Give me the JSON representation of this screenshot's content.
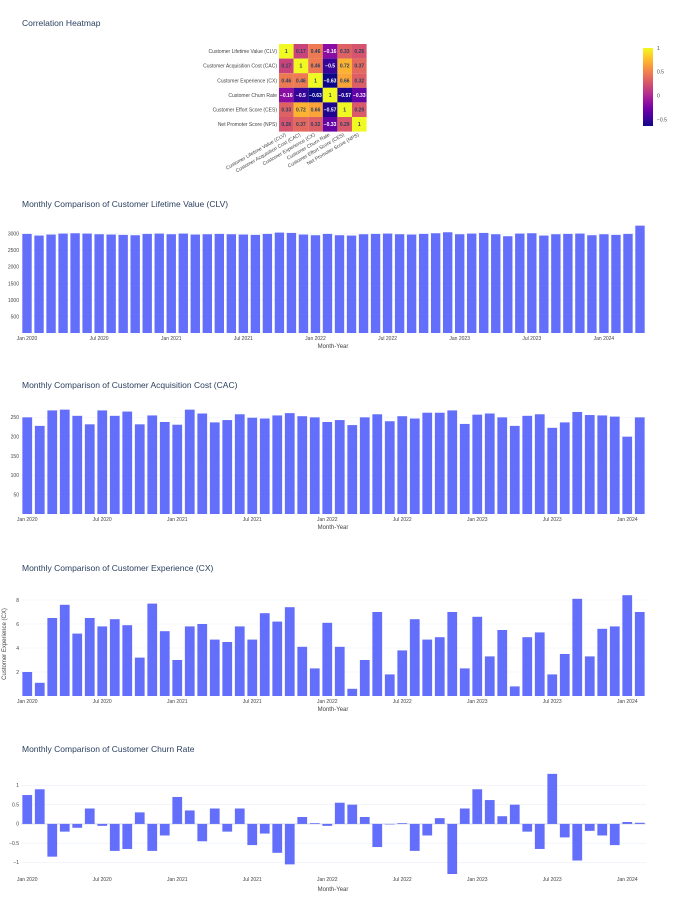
{
  "chart_data": [
    {
      "type": "heatmap",
      "title": "Correlation Heatmap",
      "labels": [
        "Customer Lifetime Value (CLV)",
        "Customer Acquisition Cost (CAC)",
        "Customer Experience (CX)",
        "Customer Churn Rate",
        "Customer Effort Score (CES)",
        "Net Promoter Score (NPS)"
      ],
      "values": [
        [
          1,
          0.17,
          0.46,
          -0.16,
          0.33,
          0.26
        ],
        [
          0.17,
          1,
          0.46,
          -0.5,
          0.72,
          0.37
        ],
        [
          0.46,
          0.46,
          1,
          -0.63,
          0.66,
          0.32
        ],
        [
          -0.16,
          -0.5,
          -0.63,
          1,
          -0.57,
          -0.33
        ],
        [
          0.33,
          0.72,
          0.66,
          -0.57,
          1,
          0.29
        ],
        [
          0.26,
          0.37,
          0.32,
          -0.33,
          0.29,
          1
        ]
      ],
      "display": [
        [
          "1",
          "0.17",
          "0.46",
          "−0.16",
          "0.33",
          "0.26"
        ],
        [
          "0.17",
          "1",
          "0.46",
          "−0.5",
          "0.72",
          "0.37"
        ],
        [
          "0.46",
          "0.46",
          "1",
          "−0.63",
          "0.66",
          "0.32"
        ],
        [
          "−0.16",
          "−0.5",
          "−0.63",
          "1",
          "−0.57",
          "−0.33"
        ],
        [
          "0.33",
          "0.72",
          "0.66",
          "−0.57",
          "1",
          "0.29"
        ],
        [
          "0.26",
          "0.37",
          "0.32",
          "−0.33",
          "0.29",
          "1"
        ]
      ],
      "colorscale": "Plasma",
      "zlim": [
        -0.63,
        1
      ],
      "colorbar_ticks": [
        "1",
        "0.5",
        "0",
        "−0.5"
      ],
      "colorbar_tick_values": [
        1,
        0.5,
        0,
        -0.5
      ]
    },
    {
      "type": "bar",
      "title": "Monthly Comparison of Customer Lifetime Value (CLV)",
      "xlabel": "Month-Year",
      "ylabel": "",
      "color": "#636efa",
      "x_start": "2020-01",
      "x_ticks": [
        "Jan 2020",
        "Jul 2020",
        "Jan 2021",
        "Jul 2021",
        "Jan 2022",
        "Jul 2022",
        "Jan 2023",
        "Jul 2023",
        "Jan 2024"
      ],
      "y_ticks": [
        "3000",
        "2500",
        "2000",
        "1500",
        "1000",
        "500"
      ],
      "y_tick_values": [
        3000,
        2500,
        2000,
        1500,
        1000,
        500
      ],
      "ylim": [
        0,
        3300
      ],
      "values": [
        3000,
        2950,
        2980,
        3010,
        3020,
        3010,
        2990,
        2980,
        2970,
        2960,
        3000,
        3010,
        2990,
        3010,
        2980,
        2990,
        3000,
        2990,
        2980,
        2970,
        3000,
        3040,
        3030,
        2980,
        2960,
        3000,
        2960,
        2950,
        2990,
        3000,
        3010,
        2990,
        2980,
        3000,
        3020,
        3050,
        2990,
        3010,
        3030,
        2990,
        2930,
        3010,
        3020,
        2950,
        2990,
        3000,
        3010,
        2960,
        2990,
        2970,
        3000,
        3250
      ]
    },
    {
      "type": "bar",
      "title": "Monthly Comparison of Customer Acquisition Cost (CAC)",
      "xlabel": "Month-Year",
      "ylabel": "",
      "color": "#636efa",
      "x_start": "2020-01",
      "x_ticks": [
        "Jan 2020",
        "Jul 2020",
        "Jan 2021",
        "Jul 2021",
        "Jan 2022",
        "Jul 2022",
        "Jan 2023",
        "Jul 2023",
        "Jan 2024"
      ],
      "y_ticks": [
        "250",
        "200",
        "150",
        "100",
        "50"
      ],
      "y_tick_values": [
        250,
        200,
        150,
        100,
        50
      ],
      "ylim": [
        0,
        282
      ],
      "values": [
        250,
        228,
        268,
        270,
        254,
        232,
        268,
        254,
        265,
        232,
        255,
        238,
        231,
        270,
        260,
        237,
        243,
        258,
        249,
        247,
        255,
        261,
        253,
        250,
        238,
        243,
        230,
        250,
        258,
        240,
        253,
        247,
        262,
        262,
        268,
        233,
        257,
        260,
        250,
        228,
        254,
        258,
        223,
        237,
        264,
        256,
        255,
        252,
        200,
        250
      ]
    },
    {
      "type": "bar",
      "title": "Monthly Comparison of Customer Experience (CX)",
      "xlabel": "Month-Year",
      "ylabel": "Customer Experience (CX)",
      "color": "#636efa",
      "x_start": "2020-01",
      "x_ticks": [
        "Jan 2020",
        "Jul 2020",
        "Jan 2021",
        "Jul 2021",
        "Jan 2022",
        "Jul 2022",
        "Jan 2023",
        "Jul 2023",
        "Jan 2024"
      ],
      "y_ticks": [
        "8",
        "6",
        "4",
        "2"
      ],
      "y_tick_values": [
        8,
        6,
        4,
        2
      ],
      "ylim": [
        0,
        9
      ],
      "values": [
        2.0,
        1.1,
        6.5,
        7.6,
        5.2,
        6.5,
        5.8,
        6.4,
        5.9,
        3.2,
        7.7,
        5.4,
        3.0,
        5.8,
        6.0,
        4.7,
        4.5,
        5.8,
        4.7,
        6.9,
        6.2,
        7.4,
        4.1,
        2.3,
        6.1,
        4.1,
        0.6,
        3.0,
        7.0,
        1.8,
        3.8,
        6.4,
        4.7,
        4.9,
        7.0,
        2.3,
        6.6,
        3.3,
        5.5,
        0.8,
        4.9,
        5.3,
        1.8,
        3.5,
        8.1,
        3.3,
        5.6,
        5.8,
        8.4,
        7.0
      ]
    },
    {
      "type": "bar",
      "title": "Monthly Comparison of Customer Churn Rate",
      "xlabel": "Month-Year",
      "ylabel": "",
      "color": "#636efa",
      "x_start": "2020-01",
      "x_ticks": [
        "Jan 2020",
        "Jul 2020",
        "Jan 2021",
        "Jul 2021",
        "Jan 2022",
        "Jul 2022",
        "Jan 2023",
        "Jul 2023",
        "Jan 2024"
      ],
      "y_ticks": [
        "1",
        "0.5",
        "0",
        "−0.5",
        "−1"
      ],
      "y_tick_values": [
        1,
        0.5,
        0,
        -0.5,
        -1
      ],
      "ylim": [
        -1.3,
        1.4
      ],
      "values": [
        0.75,
        0.9,
        -0.85,
        -0.2,
        -0.1,
        0.4,
        -0.05,
        -0.7,
        -0.65,
        0.3,
        -0.7,
        -0.3,
        0.7,
        0.35,
        -0.45,
        0.4,
        -0.2,
        0.4,
        -0.55,
        -0.25,
        -0.75,
        -1.05,
        0.18,
        0.02,
        -0.05,
        0.55,
        0.5,
        0.18,
        -0.6,
        0.0,
        0.02,
        -0.7,
        -0.3,
        0.15,
        -1.3,
        0.4,
        0.9,
        0.62,
        0.2,
        0.5,
        -0.2,
        -0.65,
        1.3,
        -0.35,
        -0.95,
        -0.18,
        -0.3,
        -0.55,
        0.05,
        0.03
      ]
    }
  ]
}
